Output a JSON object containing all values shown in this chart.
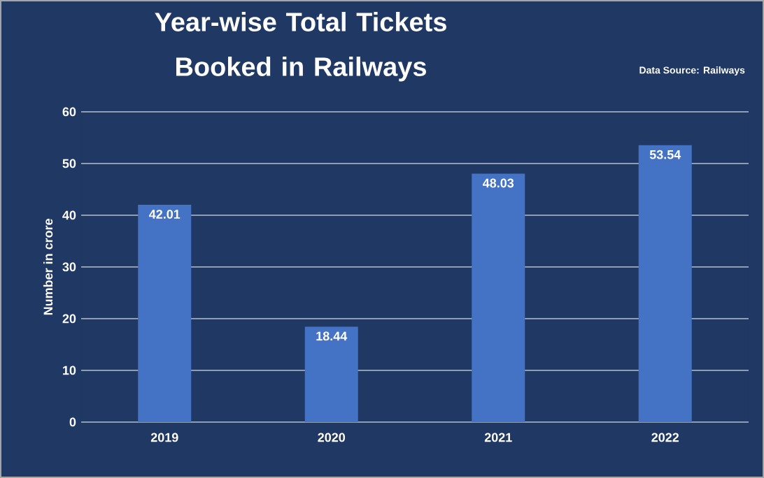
{
  "chart_data": {
    "type": "bar",
    "title": "Year-wise Total Tickets Booked in Railways",
    "ylabel": "Number in crore",
    "annotations": [
      "Data Source: Railways"
    ],
    "categories": [
      "2019",
      "2020",
      "2021",
      "2022"
    ],
    "values": [
      42.01,
      18.44,
      48.03,
      53.54
    ],
    "color": "#4472c4",
    "ylim": [
      0,
      60
    ],
    "yticks": [
      0,
      10,
      20,
      30,
      40,
      50,
      60
    ],
    "grid": "y",
    "data_labels": true
  }
}
